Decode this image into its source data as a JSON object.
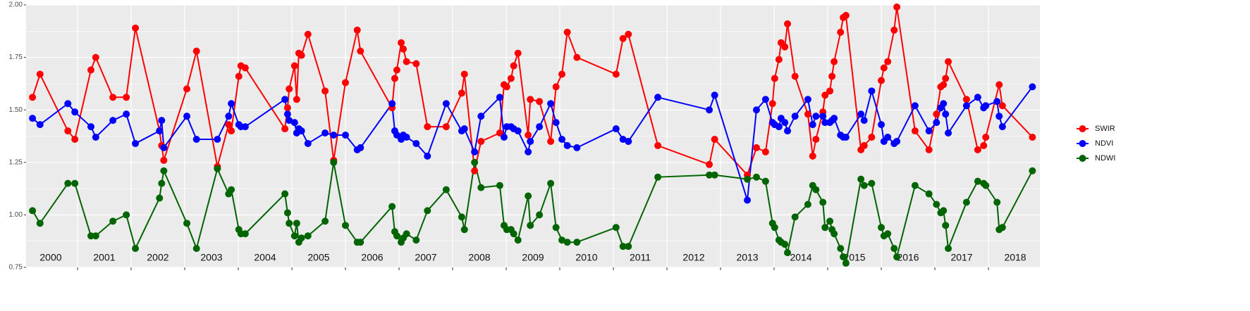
{
  "chart_data": {
    "type": "line",
    "xlim": [
      2000.04,
      2018.96
    ],
    "xticks": [
      2001,
      2002,
      2003,
      2004,
      2005,
      2006,
      2007,
      2008,
      2009,
      2010,
      2011,
      2012,
      2013,
      2014,
      2015,
      2016,
      2017,
      2018
    ],
    "year_labels": [
      2000,
      2001,
      2002,
      2003,
      2004,
      2005,
      2006,
      2007,
      2008,
      2009,
      2010,
      2011,
      2012,
      2013,
      2014,
      2015,
      2016,
      2017,
      2018
    ],
    "ylim": [
      0.75,
      2.0
    ],
    "yticks": [
      {
        "value": 0.75,
        "label": "0.75"
      },
      {
        "value": 1.0,
        "label": "1.00"
      },
      {
        "value": 1.25,
        "label": "1.25"
      },
      {
        "value": 1.5,
        "label": "1.50"
      },
      {
        "value": 1.75,
        "label": "1.75"
      },
      {
        "value": 2.0,
        "label": "2.00"
      }
    ],
    "grid": true,
    "legend": "right",
    "series": [
      {
        "name": "SWIR",
        "color": "#ff0000",
        "x": [
          2000.16,
          2000.3,
          2000.82,
          2000.95,
          2001.25,
          2001.34,
          2001.66,
          2001.91,
          2002.08,
          2002.53,
          2002.57,
          2002.61,
          2003.04,
          2003.22,
          2003.61,
          2003.82,
          2003.87,
          2004.01,
          2004.05,
          2004.13,
          2004.87,
          2004.92,
          2004.95,
          2005.05,
          2005.09,
          2005.13,
          2005.18,
          2005.3,
          2005.62,
          2005.78,
          2006.0,
          2006.22,
          2006.28,
          2006.87,
          2006.92,
          2006.96,
          2007.04,
          2007.08,
          2007.14,
          2007.32,
          2007.53,
          2007.88,
          2008.17,
          2008.22,
          2008.41,
          2008.53,
          2008.88,
          2008.96,
          2009.01,
          2009.09,
          2009.14,
          2009.22,
          2009.41,
          2009.45,
          2009.62,
          2009.83,
          2009.93,
          2010.04,
          2010.14,
          2010.32,
          2011.05,
          2011.18,
          2011.28,
          2011.83,
          2012.79,
          2012.89,
          2013.5,
          2013.67,
          2013.84,
          2013.97,
          2014.01,
          2014.09,
          2014.13,
          2014.2,
          2014.25,
          2014.39,
          2014.63,
          2014.72,
          2014.78,
          2014.91,
          2014.95,
          2015.04,
          2015.08,
          2015.12,
          2015.24,
          2015.29,
          2015.34,
          2015.62,
          2015.68,
          2015.82,
          2016.0,
          2016.05,
          2016.12,
          2016.24,
          2016.29,
          2016.63,
          2016.89,
          2017.03,
          2017.11,
          2017.16,
          2017.2,
          2017.25,
          2017.59,
          2017.8,
          2017.91,
          2017.95,
          2018.2,
          2018.26,
          2018.82
        ],
        "values": [
          1.56,
          1.67,
          1.4,
          1.36,
          1.69,
          1.75,
          1.56,
          1.56,
          1.89,
          1.4,
          1.33,
          1.26,
          1.6,
          1.78,
          1.23,
          1.43,
          1.4,
          1.66,
          1.71,
          1.7,
          1.41,
          1.51,
          1.6,
          1.71,
          1.55,
          1.77,
          1.76,
          1.86,
          1.59,
          1.26,
          1.63,
          1.88,
          1.78,
          1.51,
          1.65,
          1.69,
          1.82,
          1.79,
          1.73,
          1.72,
          1.42,
          1.42,
          1.58,
          1.67,
          1.21,
          1.35,
          1.39,
          1.62,
          1.61,
          1.65,
          1.71,
          1.77,
          1.38,
          1.55,
          1.54,
          1.35,
          1.61,
          1.67,
          1.87,
          1.75,
          1.67,
          1.84,
          1.86,
          1.33,
          1.24,
          1.36,
          1.19,
          1.32,
          1.3,
          1.53,
          1.65,
          1.74,
          1.82,
          1.8,
          1.91,
          1.66,
          1.48,
          1.28,
          1.36,
          1.49,
          1.57,
          1.59,
          1.66,
          1.73,
          1.87,
          1.94,
          1.95,
          1.31,
          1.33,
          1.37,
          1.64,
          1.7,
          1.73,
          1.88,
          1.99,
          1.4,
          1.31,
          1.48,
          1.61,
          1.62,
          1.65,
          1.73,
          1.55,
          1.31,
          1.33,
          1.37,
          1.62,
          1.52,
          1.37
        ]
      },
      {
        "name": "NDVI",
        "color": "#0000ff",
        "x": [
          2000.16,
          2000.3,
          2000.82,
          2000.95,
          2001.25,
          2001.34,
          2001.66,
          2001.91,
          2002.08,
          2002.53,
          2002.57,
          2002.61,
          2003.04,
          2003.22,
          2003.61,
          2003.82,
          2003.87,
          2004.01,
          2004.05,
          2004.13,
          2004.87,
          2004.92,
          2004.95,
          2005.05,
          2005.09,
          2005.13,
          2005.18,
          2005.3,
          2005.62,
          2005.78,
          2006.0,
          2006.22,
          2006.28,
          2006.87,
          2006.92,
          2006.96,
          2007.04,
          2007.08,
          2007.14,
          2007.32,
          2007.53,
          2007.88,
          2008.17,
          2008.22,
          2008.41,
          2008.53,
          2008.88,
          2008.96,
          2009.01,
          2009.09,
          2009.14,
          2009.22,
          2009.41,
          2009.45,
          2009.62,
          2009.83,
          2009.93,
          2010.04,
          2010.14,
          2010.32,
          2011.05,
          2011.18,
          2011.28,
          2011.83,
          2012.79,
          2012.89,
          2013.5,
          2013.67,
          2013.84,
          2013.97,
          2014.01,
          2014.09,
          2014.13,
          2014.2,
          2014.25,
          2014.39,
          2014.63,
          2014.72,
          2014.78,
          2014.91,
          2014.95,
          2015.04,
          2015.08,
          2015.12,
          2015.24,
          2015.29,
          2015.34,
          2015.62,
          2015.68,
          2015.82,
          2016.0,
          2016.05,
          2016.12,
          2016.24,
          2016.29,
          2016.63,
          2016.89,
          2017.03,
          2017.11,
          2017.16,
          2017.2,
          2017.25,
          2017.59,
          2017.8,
          2017.91,
          2017.95,
          2018.16,
          2018.2,
          2018.26,
          2018.82
        ],
        "values": [
          1.46,
          1.43,
          1.53,
          1.49,
          1.42,
          1.37,
          1.45,
          1.48,
          1.34,
          1.4,
          1.45,
          1.32,
          1.47,
          1.36,
          1.36,
          1.47,
          1.53,
          1.43,
          1.42,
          1.42,
          1.55,
          1.48,
          1.45,
          1.44,
          1.39,
          1.41,
          1.4,
          1.34,
          1.39,
          1.38,
          1.38,
          1.31,
          1.32,
          1.53,
          1.4,
          1.38,
          1.36,
          1.38,
          1.37,
          1.34,
          1.28,
          1.53,
          1.4,
          1.41,
          1.3,
          1.47,
          1.56,
          1.37,
          1.42,
          1.42,
          1.41,
          1.4,
          1.3,
          1.35,
          1.42,
          1.53,
          1.44,
          1.36,
          1.33,
          1.32,
          1.41,
          1.36,
          1.35,
          1.56,
          1.5,
          1.57,
          1.07,
          1.5,
          1.55,
          1.44,
          1.43,
          1.42,
          1.46,
          1.44,
          1.4,
          1.47,
          1.55,
          1.43,
          1.47,
          1.47,
          1.44,
          1.44,
          1.45,
          1.46,
          1.38,
          1.37,
          1.37,
          1.48,
          1.45,
          1.59,
          1.43,
          1.35,
          1.37,
          1.34,
          1.35,
          1.52,
          1.4,
          1.44,
          1.51,
          1.53,
          1.48,
          1.39,
          1.52,
          1.56,
          1.51,
          1.52,
          1.54,
          1.47,
          1.42,
          1.61
        ]
      },
      {
        "name": "NDWI",
        "color": "#006400",
        "x": [
          2000.16,
          2000.3,
          2000.82,
          2000.95,
          2001.25,
          2001.34,
          2001.66,
          2001.91,
          2002.08,
          2002.53,
          2002.57,
          2002.61,
          2003.04,
          2003.22,
          2003.61,
          2003.82,
          2003.87,
          2004.01,
          2004.05,
          2004.13,
          2004.87,
          2004.92,
          2004.95,
          2005.05,
          2005.09,
          2005.13,
          2005.18,
          2005.3,
          2005.62,
          2005.78,
          2006.0,
          2006.22,
          2006.28,
          2006.87,
          2006.92,
          2006.96,
          2007.04,
          2007.08,
          2007.14,
          2007.32,
          2007.53,
          2007.88,
          2008.17,
          2008.22,
          2008.41,
          2008.53,
          2008.88,
          2008.96,
          2009.01,
          2009.09,
          2009.14,
          2009.22,
          2009.41,
          2009.45,
          2009.62,
          2009.83,
          2009.93,
          2010.04,
          2010.14,
          2010.32,
          2011.05,
          2011.18,
          2011.28,
          2011.83,
          2012.79,
          2012.89,
          2013.5,
          2013.67,
          2013.84,
          2013.97,
          2014.01,
          2014.09,
          2014.13,
          2014.2,
          2014.25,
          2014.39,
          2014.63,
          2014.72,
          2014.78,
          2014.91,
          2014.95,
          2015.04,
          2015.08,
          2015.12,
          2015.24,
          2015.29,
          2015.34,
          2015.62,
          2015.68,
          2015.82,
          2016.0,
          2016.05,
          2016.12,
          2016.24,
          2016.29,
          2016.63,
          2016.89,
          2017.03,
          2017.11,
          2017.16,
          2017.2,
          2017.25,
          2017.59,
          2017.8,
          2017.91,
          2017.95,
          2018.16,
          2018.2,
          2018.26,
          2018.82
        ],
        "values": [
          1.02,
          0.96,
          1.15,
          1.15,
          0.9,
          0.9,
          0.97,
          1.0,
          0.84,
          1.08,
          1.15,
          1.21,
          0.96,
          0.84,
          1.22,
          1.1,
          1.12,
          0.93,
          0.91,
          0.91,
          1.1,
          1.01,
          0.96,
          0.9,
          0.96,
          0.87,
          0.89,
          0.9,
          0.97,
          1.25,
          0.95,
          0.87,
          0.87,
          1.04,
          0.92,
          0.9,
          0.87,
          0.89,
          0.91,
          0.88,
          1.02,
          1.12,
          0.99,
          0.93,
          1.25,
          1.13,
          1.14,
          0.95,
          0.93,
          0.93,
          0.91,
          0.88,
          1.09,
          0.95,
          1.0,
          1.15,
          0.94,
          0.88,
          0.87,
          0.87,
          0.94,
          0.85,
          0.85,
          1.18,
          1.19,
          1.19,
          1.17,
          1.18,
          1.16,
          0.96,
          0.94,
          0.88,
          0.87,
          0.86,
          0.82,
          0.99,
          1.05,
          1.14,
          1.12,
          1.06,
          0.94,
          0.97,
          0.93,
          0.91,
          0.84,
          0.8,
          0.77,
          1.17,
          1.14,
          1.15,
          0.94,
          0.9,
          0.91,
          0.84,
          0.8,
          1.14,
          1.1,
          1.05,
          1.01,
          1.02,
          0.95,
          0.84,
          1.06,
          1.16,
          1.15,
          1.14,
          1.06,
          0.93,
          0.94,
          1.21
        ]
      }
    ]
  }
}
